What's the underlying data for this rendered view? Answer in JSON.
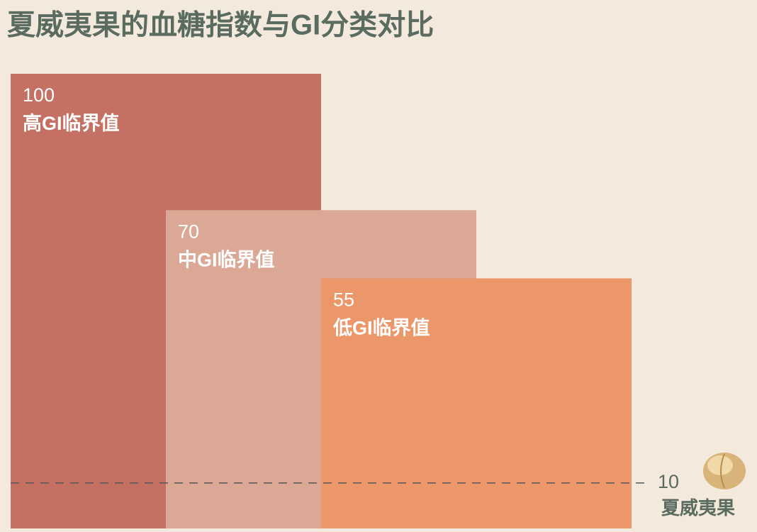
{
  "chart_data": {
    "type": "bar",
    "title": "夏威夷果的血糖指数与GI分类对比",
    "categories": [
      "高GI临界值",
      "中GI临界值",
      "低GI临界值"
    ],
    "values": [
      100,
      70,
      55
    ],
    "colors": [
      "#c47062",
      "#dba896",
      "#ec9769"
    ],
    "ylim": [
      0,
      100
    ],
    "reference": {
      "name": "夏威夷果",
      "value": 10,
      "color": "#555555"
    }
  }
}
